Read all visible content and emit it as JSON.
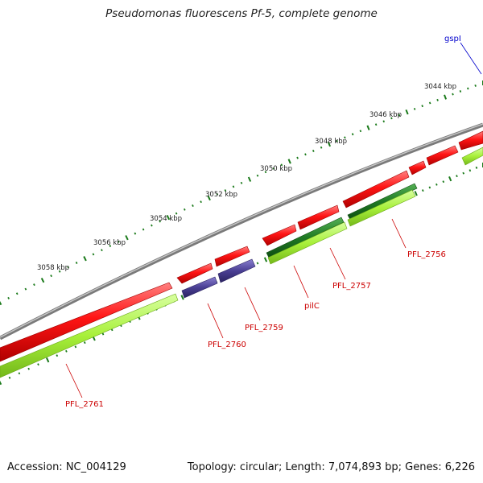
{
  "title": "Pseudomonas fluorescens Pf-5, complete genome",
  "footer": {
    "accession": "Accession: NC_004129",
    "summary": "Topology: circular; Length: 7,074,893 bp; Genes: 6,226"
  },
  "colors": {
    "backbone": "#8a8a8a",
    "forward_gene": "#ee1111",
    "reverse_gene_purple": "#4a3f94",
    "reverse_gene_green": "#1f7a24",
    "cds_light_green": "#a8f03a",
    "tick": "#1a7a1a",
    "label_red": "#cc0000",
    "label_blue": "#0000cc"
  },
  "ticks": [
    {
      "label": "3044 kbp"
    },
    {
      "label": "3046 kbp"
    },
    {
      "label": "3048 kbp"
    },
    {
      "label": "3050 kbp"
    },
    {
      "label": "3052 kbp"
    },
    {
      "label": "3054 kbp"
    },
    {
      "label": "3056 kbp"
    },
    {
      "label": "3058 kbp"
    }
  ],
  "gene_labels": [
    {
      "name": "gspI",
      "color": "blue"
    },
    {
      "name": "PFL_2756",
      "color": "red"
    },
    {
      "name": "PFL_2757",
      "color": "red"
    },
    {
      "name": "pilC",
      "color": "red"
    },
    {
      "name": "PFL_2759",
      "color": "red"
    },
    {
      "name": "PFL_2760",
      "color": "red"
    },
    {
      "name": "PFL_2761",
      "color": "red"
    }
  ]
}
